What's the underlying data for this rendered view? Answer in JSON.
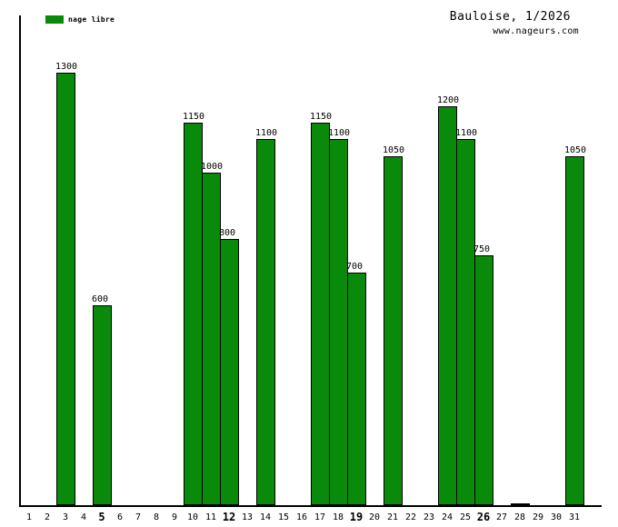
{
  "header": {
    "title": "Bauloise, 1/2026",
    "source": "www.nageurs.com"
  },
  "legend": {
    "label": "nage libre",
    "color": "#0a8a0a"
  },
  "chart_data": {
    "type": "bar",
    "title": "Bauloise, 1/2026",
    "subtitle": "www.nageurs.com",
    "xlabel": "",
    "ylabel": "",
    "ylim": [
      0,
      1475
    ],
    "grid": false,
    "legend_position": "top-left",
    "background_color": "#ffffff",
    "axis_color": "#000000",
    "bar_outline_color": "#000000",
    "categories": [
      "1",
      "2",
      "3",
      "4",
      "5",
      "6",
      "7",
      "8",
      "9",
      "10",
      "11",
      "12",
      "13",
      "14",
      "15",
      "16",
      "17",
      "18",
      "19",
      "20",
      "21",
      "22",
      "23",
      "24",
      "25",
      "26",
      "27",
      "28",
      "29",
      "30",
      "31"
    ],
    "bold_categories": [
      5,
      12,
      19,
      26
    ],
    "series": [
      {
        "name": "nage libre",
        "color": "#0a8a0a"
      }
    ],
    "bars": [
      {
        "day": 3,
        "value": 1300,
        "label": "1300"
      },
      {
        "day": 5,
        "value": 600,
        "label": "600"
      },
      {
        "day": 10,
        "value": 1150,
        "label": "1150"
      },
      {
        "day": 11,
        "value": 1000,
        "label": "1000"
      },
      {
        "day": 12,
        "value": 800,
        "label": "800"
      },
      {
        "day": 14,
        "value": 1100,
        "label": "1100"
      },
      {
        "day": 17,
        "value": 1150,
        "label": "1150"
      },
      {
        "day": 18,
        "value": 1100,
        "label": "1100"
      },
      {
        "day": 19,
        "value": 700,
        "label": "700"
      },
      {
        "day": 21,
        "value": 1050,
        "label": "1050"
      },
      {
        "day": 24,
        "value": 1200,
        "label": "1200"
      },
      {
        "day": 25,
        "value": 1100,
        "label": "1100"
      },
      {
        "day": 26,
        "value": 750,
        "label": "750"
      },
      {
        "day": 28,
        "value": 5,
        "label": ""
      },
      {
        "day": 31,
        "value": 1050,
        "label": "1050"
      }
    ]
  }
}
